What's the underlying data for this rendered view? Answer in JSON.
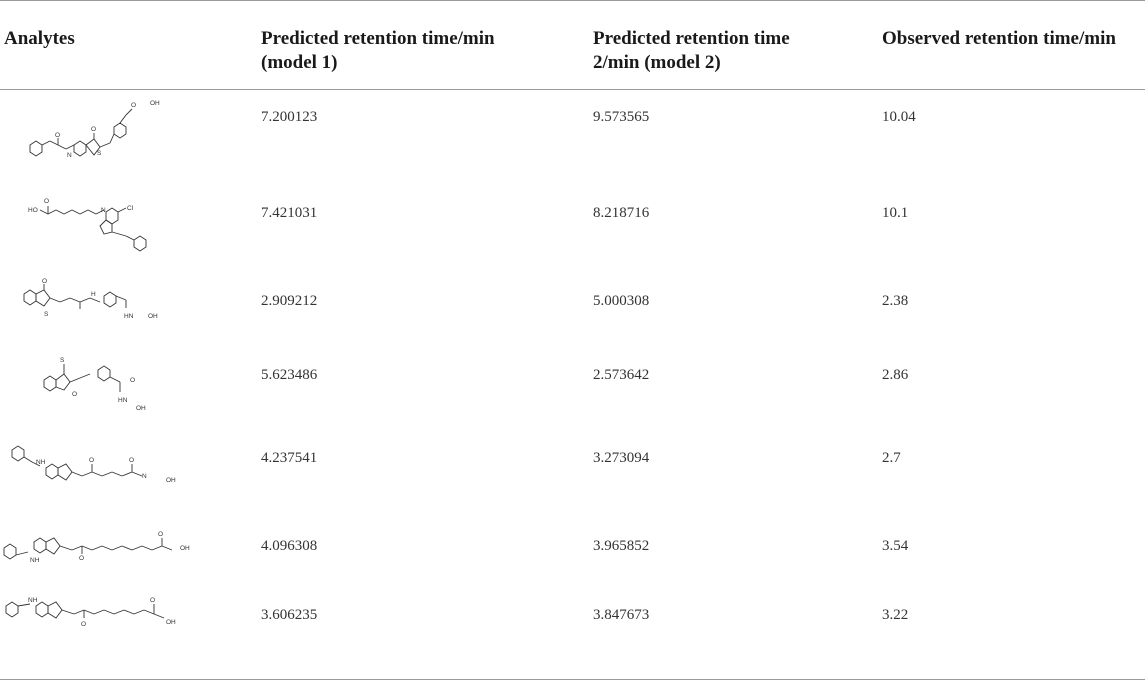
{
  "table": {
    "headers": [
      "Analytes",
      "Predicted retention time/min (model 1)",
      "Predicted retention time 2/min (model 2)",
      "Observed retention time/min"
    ],
    "header_lines": {
      "c0": [
        "Analytes"
      ],
      "c1": [
        "Predicted retention time/min",
        "(model 1)"
      ],
      "c2": [
        "Predicted retention time",
        "2/min (model 2)"
      ],
      "c3": [
        "Observed retention time/min"
      ]
    },
    "rows": [
      {
        "analyte": "molecule-1",
        "m1": "7.200123",
        "m2": "9.573565",
        "obs": "10.04"
      },
      {
        "analyte": "molecule-2",
        "m1": "7.421031",
        "m2": "8.218716",
        "obs": "10.1"
      },
      {
        "analyte": "molecule-3",
        "m1": "2.909212",
        "m2": "5.000308",
        "obs": "2.38"
      },
      {
        "analyte": "molecule-4",
        "m1": "5.623486",
        "m2": "2.573642",
        "obs": "2.86"
      },
      {
        "analyte": "molecule-5",
        "m1": "4.237541",
        "m2": "3.273094",
        "obs": "2.7"
      },
      {
        "analyte": "molecule-6",
        "m1": "4.096308",
        "m2": "3.965852",
        "obs": "3.54"
      },
      {
        "analyte": "molecule-7",
        "m1": "3.606235",
        "m2": "3.847673",
        "obs": "3.22"
      }
    ],
    "structure_labels": {
      "oh": "OH",
      "o": "O",
      "h": "H",
      "n": "N",
      "s": "S",
      "cl": "Cl",
      "hn": "HN",
      "hoh": "HO",
      "nh": "NH"
    }
  }
}
